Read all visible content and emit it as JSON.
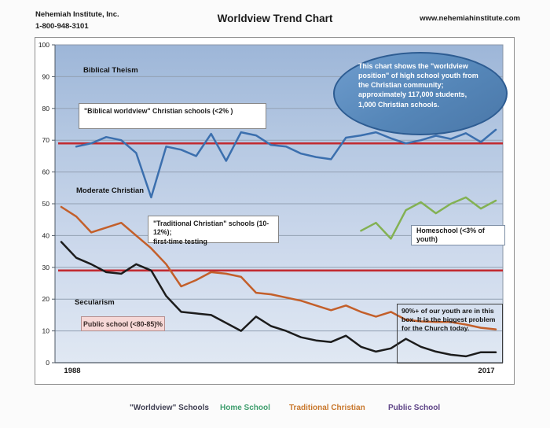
{
  "header": {
    "org_name": "Nehemiah Institute, Inc.",
    "phone": "1-800-948-3101",
    "title": "Worldview Trend Chart",
    "website": "www.nehemiahinstitute.com"
  },
  "chart_data": {
    "type": "line",
    "title": "Worldview Trend Chart",
    "x_axis": {
      "start": 1988,
      "end": 2017,
      "tick_labels": [
        "1988",
        "2017"
      ]
    },
    "y_axis": {
      "min": 0,
      "max": 100,
      "step": 10,
      "tick_labels": [
        "100",
        "90",
        "80",
        "70",
        "60",
        "50",
        "40",
        "30",
        "20",
        "10",
        "0"
      ]
    },
    "grid": true,
    "ref_lines": [
      {
        "value": 69,
        "color": "#c22a30"
      },
      {
        "value": 29,
        "color": "#c22a30"
      }
    ],
    "series": [
      {
        "name": "Traditional Christian",
        "color": "#c35f2a",
        "start_year": 1988,
        "values": [
          49,
          46,
          41,
          42.5,
          44,
          40,
          36,
          31,
          24,
          26,
          28.5,
          28,
          27,
          22,
          21.5,
          20.5,
          19.5,
          18,
          16.5,
          18,
          16,
          14.5,
          16,
          13.5,
          13,
          12.8,
          12.8,
          12,
          11,
          10.5
        ]
      },
      {
        "name": "Public School",
        "color": "#1c1c1c",
        "start_year": 1988,
        "values": [
          38,
          33,
          31,
          28.5,
          28,
          31,
          29,
          21,
          16,
          15.5,
          15,
          12.5,
          10,
          14.5,
          11.5,
          10,
          8,
          7,
          6.5,
          8.5,
          5,
          3.5,
          4.5,
          7.5,
          5,
          3.5,
          2.5,
          2,
          3.3,
          3.3
        ]
      },
      {
        "name": "\"Worldview\" Schools",
        "color": "#3b6fae",
        "start_year": 1989,
        "values": [
          68,
          69,
          71,
          70,
          66,
          52,
          68,
          67,
          65,
          72,
          63.5,
          72.5,
          71.5,
          68.5,
          68,
          65.8,
          64.7,
          64,
          70.8,
          71.5,
          72.5,
          70.6,
          69,
          70,
          71.4,
          70.4,
          72.2,
          69.4,
          73.3
        ]
      },
      {
        "name": "Home School",
        "color": "#83b153",
        "start_year": 2008,
        "values": [
          41.5,
          44,
          39,
          48,
          50.5,
          47,
          50,
          52,
          48.5,
          51
        ]
      }
    ]
  },
  "annotations": {
    "zone_biblical": "Biblical Theism",
    "zone_moderate": "Moderate Christian",
    "zone_secularism": "Secularism",
    "box_biblical": "\"Biblical worldview\" Christian schools (<2% )",
    "box_traditional_line1": "\"Traditional Christian\" schools (10-12%);",
    "box_traditional_line2": "first-time testing",
    "box_homeschool": "Homeschool (<3% of youth)",
    "box_public": "Public school (<80-85)%",
    "ellipse_text": "This chart shows the \"worldview position\" of high school youth from the Christian community; approximately 117,000 students, 1,000 Christian schools.",
    "box_90_text": "90%+ of our youth are in this box.  It is the biggest problem for the Church today."
  },
  "legend": {
    "items": [
      {
        "label": "\"Worldview\" Schools",
        "color": "#3f3f52"
      },
      {
        "label": "Home School",
        "color": "#3f9e6e"
      },
      {
        "label": "Traditional Christian",
        "color": "#c8772c"
      },
      {
        "label": "Public School",
        "color": "#5d4386"
      }
    ]
  }
}
